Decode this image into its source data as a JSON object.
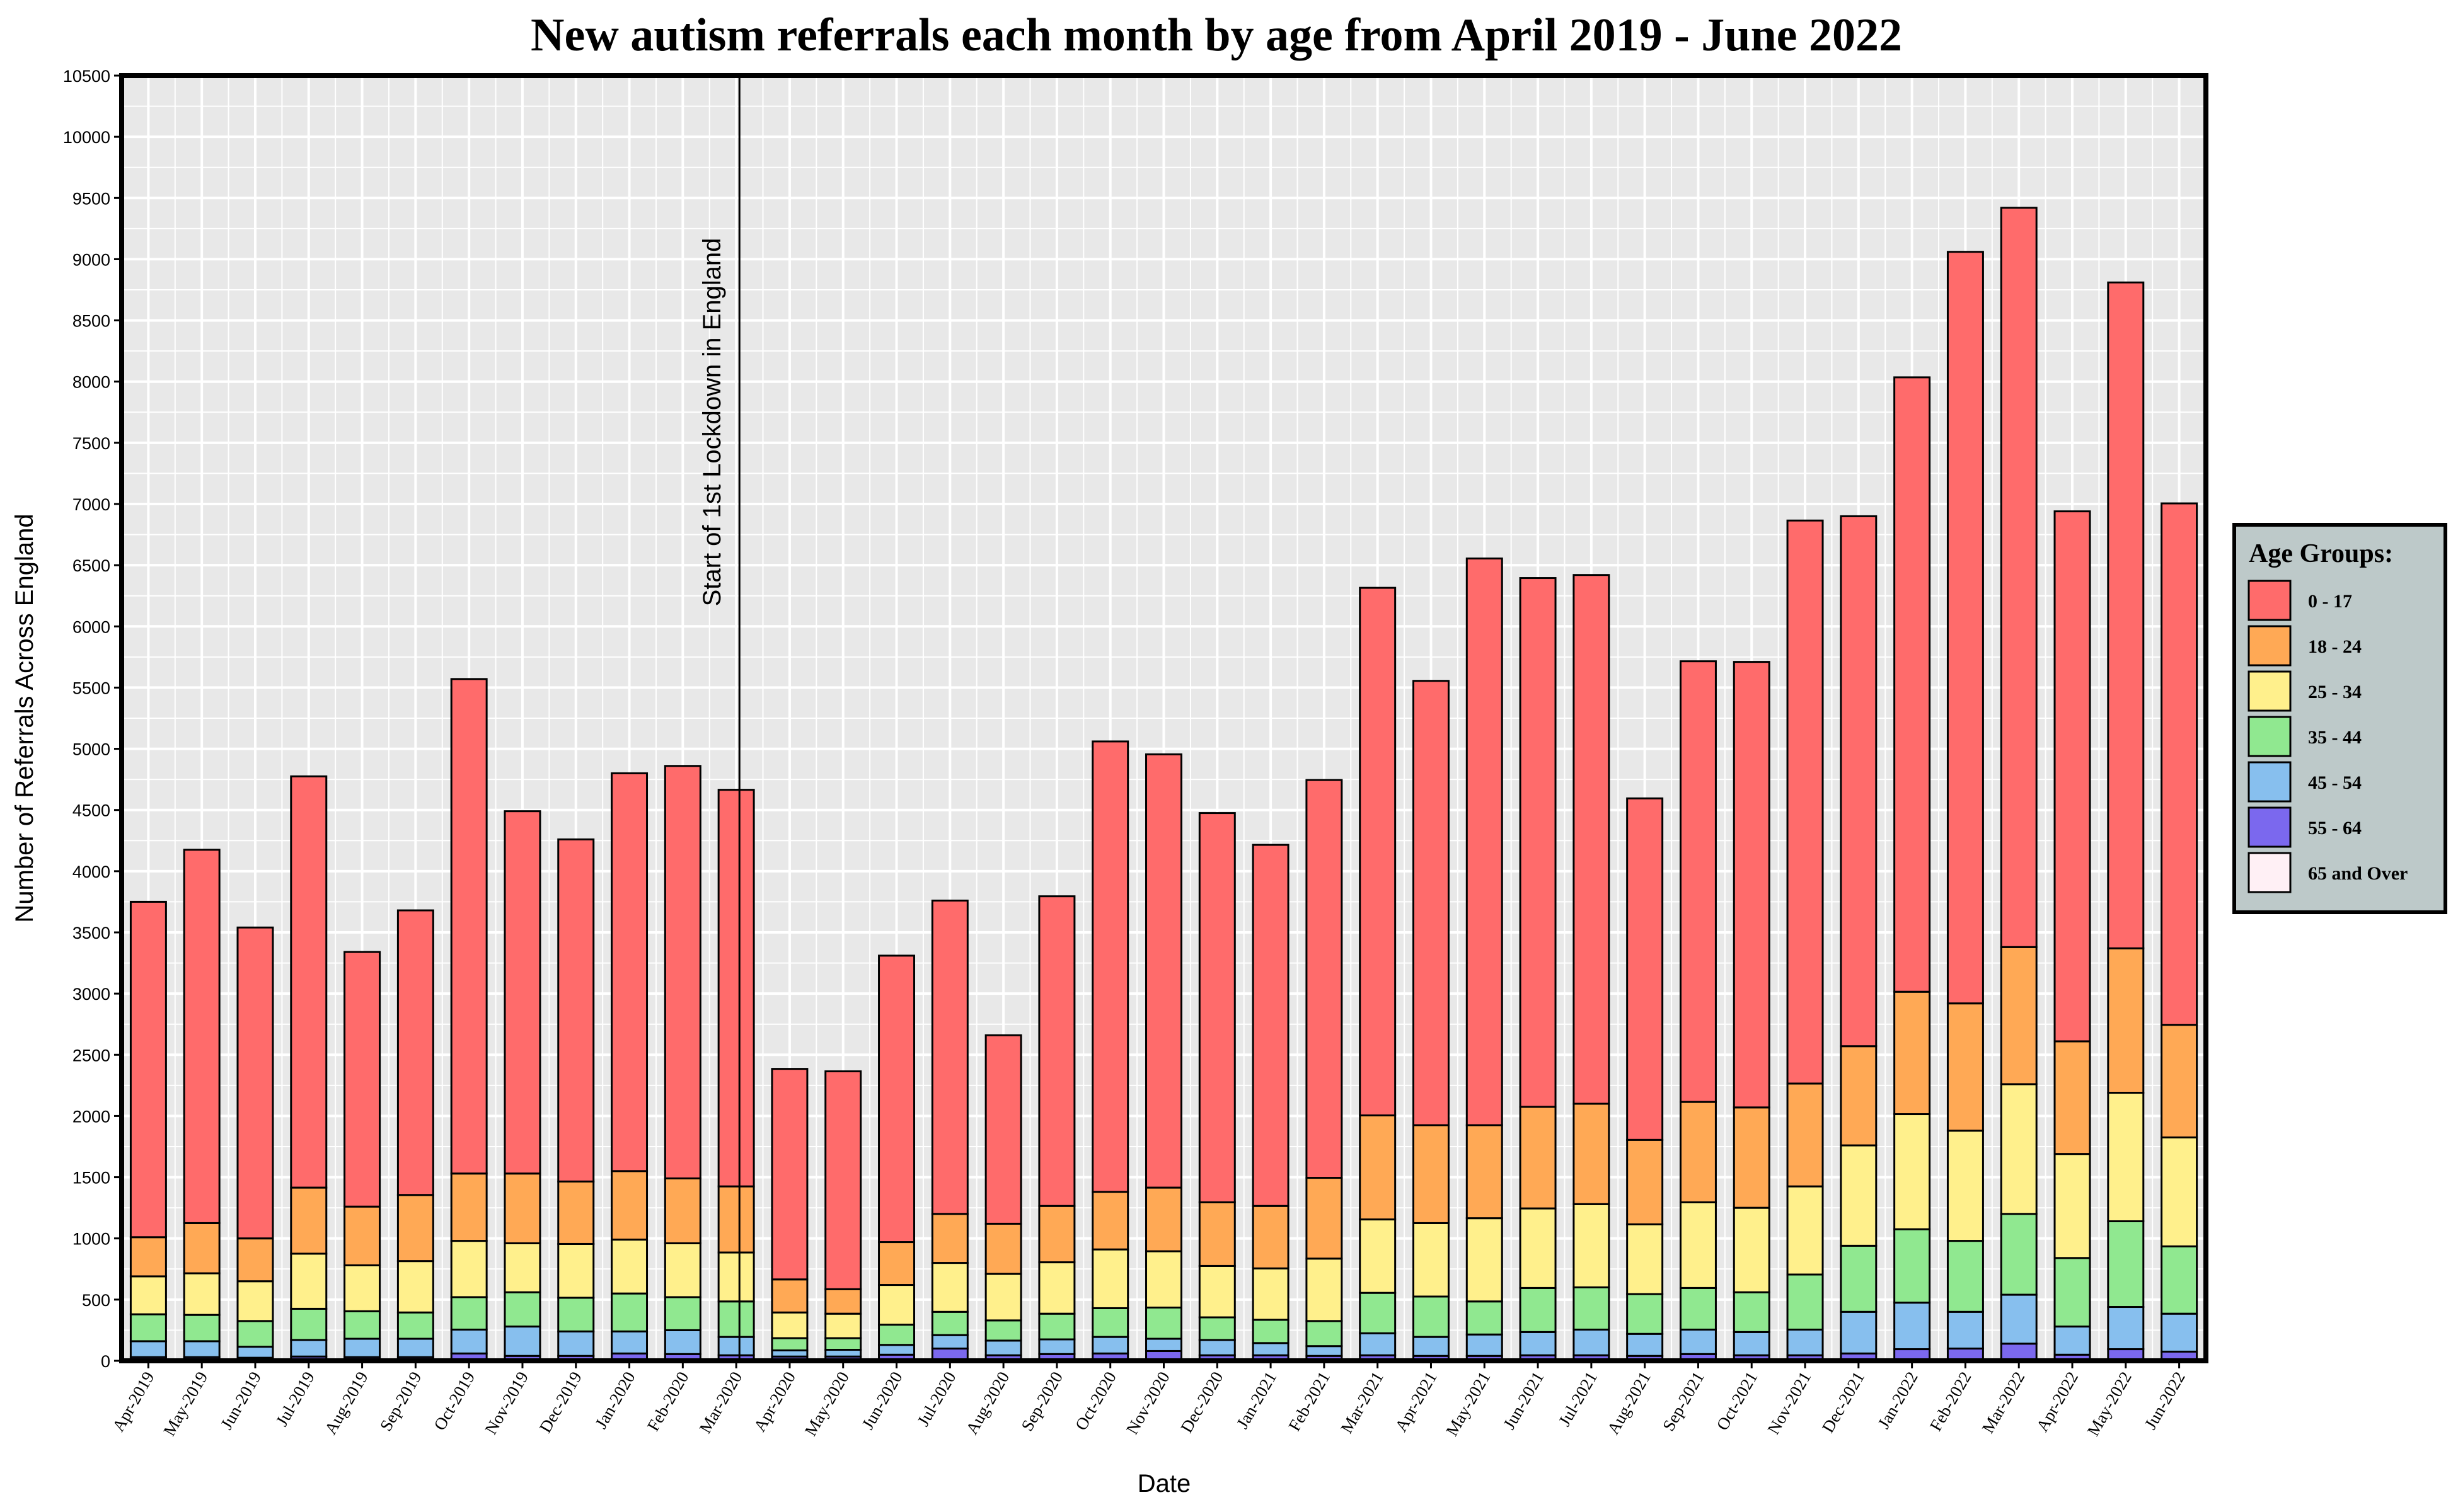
{
  "chart_data": {
    "type": "bar",
    "stacked": true,
    "title": "New autism referrals each month by age from April 2019 - June 2022",
    "xlabel": "Date",
    "ylabel": "Number of Referrals Across England",
    "ylim": [
      0,
      10500
    ],
    "ytick_step": 500,
    "grid": true,
    "legend": {
      "title": "Age Groups:",
      "placement": "right"
    },
    "annotation": {
      "text": "Start of 1st Lockdown in England",
      "category": "Mar-2020"
    },
    "categories": [
      "Apr-2019",
      "May-2019",
      "Jun-2019",
      "Jul-2019",
      "Aug-2019",
      "Sep-2019",
      "Oct-2019",
      "Nov-2019",
      "Dec-2019",
      "Jan-2020",
      "Feb-2020",
      "Mar-2020",
      "Apr-2020",
      "May-2020",
      "Jun-2020",
      "Jul-2020",
      "Aug-2020",
      "Sep-2020",
      "Oct-2020",
      "Nov-2020",
      "Dec-2020",
      "Jan-2021",
      "Feb-2021",
      "Mar-2021",
      "Apr-2021",
      "May-2021",
      "Jun-2021",
      "Jul-2021",
      "Aug-2021",
      "Sep-2021",
      "Oct-2021",
      "Nov-2021",
      "Dec-2021",
      "Jan-2022",
      "Feb-2022",
      "Mar-2022",
      "Apr-2022",
      "May-2022",
      "Jun-2022"
    ],
    "series": [
      {
        "name": "65 and Over",
        "color": "#fff0f5",
        "values": [
          5,
          5,
          5,
          5,
          5,
          5,
          5,
          5,
          5,
          5,
          5,
          5,
          5,
          5,
          5,
          5,
          5,
          5,
          5,
          5,
          5,
          5,
          5,
          5,
          5,
          5,
          5,
          5,
          5,
          5,
          5,
          5,
          5,
          5,
          5,
          5,
          5,
          5,
          5
        ]
      },
      {
        "name": "55 - 64",
        "color": "#7b68ee",
        "values": [
          25,
          25,
          20,
          30,
          25,
          25,
          55,
          35,
          35,
          55,
          50,
          40,
          30,
          30,
          45,
          95,
          40,
          50,
          55,
          75,
          40,
          40,
          35,
          40,
          35,
          35,
          40,
          40,
          35,
          50,
          40,
          40,
          55,
          90,
          95,
          135,
          45,
          90,
          70
        ]
      },
      {
        "name": "45 - 54",
        "color": "#87bfee",
        "values": [
          130,
          130,
          90,
          135,
          150,
          150,
          195,
          240,
          200,
          180,
          195,
          150,
          50,
          55,
          80,
          110,
          120,
          120,
          135,
          100,
          125,
          100,
          80,
          180,
          155,
          175,
          190,
          210,
          180,
          200,
          190,
          210,
          340,
          380,
          300,
          400,
          230,
          345,
          310
        ]
      },
      {
        "name": "35 - 44",
        "color": "#90e890",
        "values": [
          220,
          215,
          210,
          255,
          225,
          215,
          265,
          280,
          275,
          310,
          270,
          290,
          100,
          95,
          165,
          190,
          165,
          210,
          235,
          255,
          185,
          190,
          205,
          330,
          330,
          270,
          360,
          345,
          325,
          340,
          325,
          450,
          540,
          600,
          580,
          660,
          560,
          700,
          550
        ]
      },
      {
        "name": "25 - 34",
        "color": "#fff08c",
        "values": [
          310,
          340,
          325,
          450,
          375,
          420,
          460,
          400,
          440,
          440,
          440,
          400,
          210,
          200,
          325,
          400,
          380,
          420,
          480,
          460,
          420,
          420,
          510,
          600,
          600,
          680,
          650,
          680,
          570,
          700,
          690,
          720,
          820,
          940,
          900,
          1060,
          850,
          1050,
          890
        ]
      },
      {
        "name": "18 - 24",
        "color": "#ffa955",
        "values": [
          320,
          410,
          350,
          540,
          480,
          540,
          550,
          570,
          510,
          560,
          530,
          540,
          270,
          200,
          350,
          400,
          410,
          460,
          470,
          520,
          520,
          510,
          660,
          850,
          800,
          760,
          830,
          820,
          690,
          820,
          820,
          840,
          810,
          1000,
          1040,
          1120,
          920,
          1180,
          920
        ]
      },
      {
        "name": "0 - 17",
        "color": "#ff6b6b",
        "values": [
          2740,
          3050,
          2540,
          3360,
          2080,
          2325,
          4040,
          2960,
          2795,
          3250,
          3370,
          3240,
          1720,
          1780,
          2340,
          2560,
          1540,
          2530,
          3680,
          3540,
          3180,
          2950,
          3250,
          4310,
          3630,
          4630,
          4320,
          4320,
          2790,
          3600,
          3640,
          4600,
          4330,
          5020,
          6140,
          6040,
          4330,
          5440,
          4260
        ]
      }
    ]
  }
}
